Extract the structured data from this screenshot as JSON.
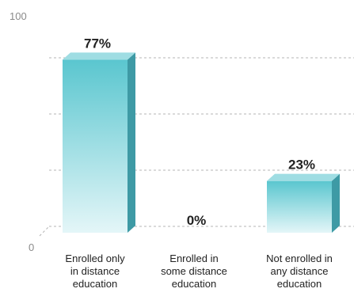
{
  "chart_data": {
    "type": "bar",
    "categories": [
      [
        "Enrolled only",
        "in distance",
        "education"
      ],
      [
        "Enrolled in",
        "some distance",
        "education"
      ],
      [
        "Not enrolled in",
        "any distance",
        "education"
      ]
    ],
    "values": [
      77,
      0,
      23
    ],
    "value_labels": [
      "77%",
      "0%",
      "23%"
    ],
    "y_tick_labels": [
      "0",
      "100"
    ],
    "ylim": [
      0,
      100
    ],
    "title": "",
    "xlabel": "",
    "ylabel": "",
    "grid": true,
    "colors": {
      "bar_front_top": "#5ac6cf",
      "bar_front_bottom": "#e4f6f8",
      "bar_side": "#3e9aa5",
      "bar_top": "#9fdde3",
      "gridline": "#b5b5b5"
    }
  }
}
